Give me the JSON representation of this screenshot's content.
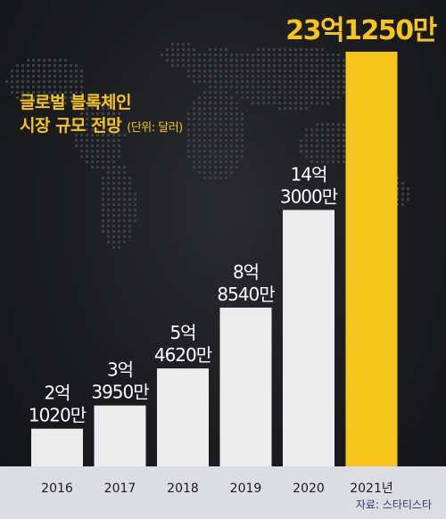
{
  "title": {
    "line1": "글로벌 블록체인",
    "line2": "시장 규모 전망",
    "unit": "(단위: 달러)"
  },
  "source": "자료: 스타티스타",
  "colors": {
    "bar": "#ececec",
    "highlight": "#f5c51c",
    "label": "#ffffff",
    "year_label": "#1a1a1a"
  },
  "chart_data": {
    "type": "bar",
    "categories": [
      "2016",
      "2017",
      "2018",
      "2019",
      "2020",
      "2021년"
    ],
    "values": [
      210200000,
      339500000,
      546200000,
      885400000,
      1430000000,
      2312500000
    ],
    "data_labels": [
      [
        "2억",
        "1020만"
      ],
      [
        "3억",
        "3950만"
      ],
      [
        "5억",
        "4620만"
      ],
      [
        "8억",
        "8540만"
      ],
      [
        "14억",
        "3000만"
      ],
      [
        "23억1250만"
      ]
    ],
    "highlight_index": 5,
    "ylim": [
      0,
      2312500000
    ],
    "grid": false,
    "legend": "none",
    "xlabel": "",
    "ylabel": ""
  }
}
